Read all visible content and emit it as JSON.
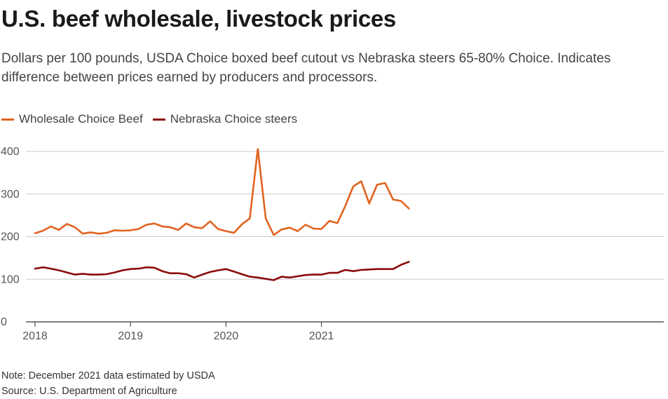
{
  "header": {
    "title": "U.S. beef wholesale, livestock prices",
    "subtitle": "Dollars per 100 pounds, USDA Choice boxed beef cutout vs Nebraska steers 65-80% Choice. Indicates difference between prices earned by producers and processors."
  },
  "footer": {
    "note": "Note: December 2021 data estimated by USDA",
    "source": "Source: U.S. Department of Agriculture"
  },
  "chart_data": {
    "type": "line",
    "title": "U.S. beef wholesale, livestock prices",
    "subtitle": "Dollars per 100 pounds, USDA Choice boxed beef cutout vs Nebraska steers 65-80% Choice. Indicates difference between prices earned by producers and processors.",
    "xlabel": "",
    "ylabel": "",
    "x_tick_labels": [
      "2018",
      "2019",
      "2020",
      "2021"
    ],
    "y_ticks": [
      0,
      100,
      200,
      300,
      400
    ],
    "ylim": [
      0,
      400
    ],
    "grid": true,
    "legend_position": "top-left",
    "x": [
      "2018-01",
      "2018-02",
      "2018-03",
      "2018-04",
      "2018-05",
      "2018-06",
      "2018-07",
      "2018-08",
      "2018-09",
      "2018-10",
      "2018-11",
      "2018-12",
      "2019-01",
      "2019-02",
      "2019-03",
      "2019-04",
      "2019-05",
      "2019-06",
      "2019-07",
      "2019-08",
      "2019-09",
      "2019-10",
      "2019-11",
      "2019-12",
      "2020-01",
      "2020-02",
      "2020-03",
      "2020-04",
      "2020-05",
      "2020-06",
      "2020-07",
      "2020-08",
      "2020-09",
      "2020-10",
      "2020-11",
      "2020-12",
      "2021-01",
      "2021-02",
      "2021-03",
      "2021-04",
      "2021-05",
      "2021-06",
      "2021-07",
      "2021-08",
      "2021-09",
      "2021-10",
      "2021-11",
      "2021-12"
    ],
    "series": [
      {
        "name": "Wholesale Choice Beef",
        "color": "#e2631f",
        "values": [
          208,
          214,
          224,
          216,
          230,
          222,
          207,
          210,
          207,
          209,
          215,
          214,
          215,
          218,
          228,
          231,
          224,
          222,
          216,
          231,
          222,
          220,
          236,
          218,
          213,
          209,
          229,
          243,
          406,
          243,
          204,
          217,
          221,
          213,
          228,
          219,
          218,
          237,
          232,
          272,
          318,
          330,
          278,
          322,
          326,
          287,
          284,
          266
        ]
      },
      {
        "name": "Nebraska Choice steers",
        "color": "#8b0a0a",
        "values": [
          125,
          128,
          125,
          121,
          116,
          111,
          113,
          111,
          111,
          112,
          116,
          121,
          124,
          125,
          128,
          127,
          119,
          114,
          114,
          112,
          104,
          111,
          117,
          121,
          124,
          118,
          112,
          106,
          104,
          101,
          98,
          106,
          104,
          107,
          110,
          111,
          111,
          115,
          115,
          122,
          119,
          122,
          123,
          124,
          124,
          124,
          134,
          141
        ]
      }
    ]
  }
}
